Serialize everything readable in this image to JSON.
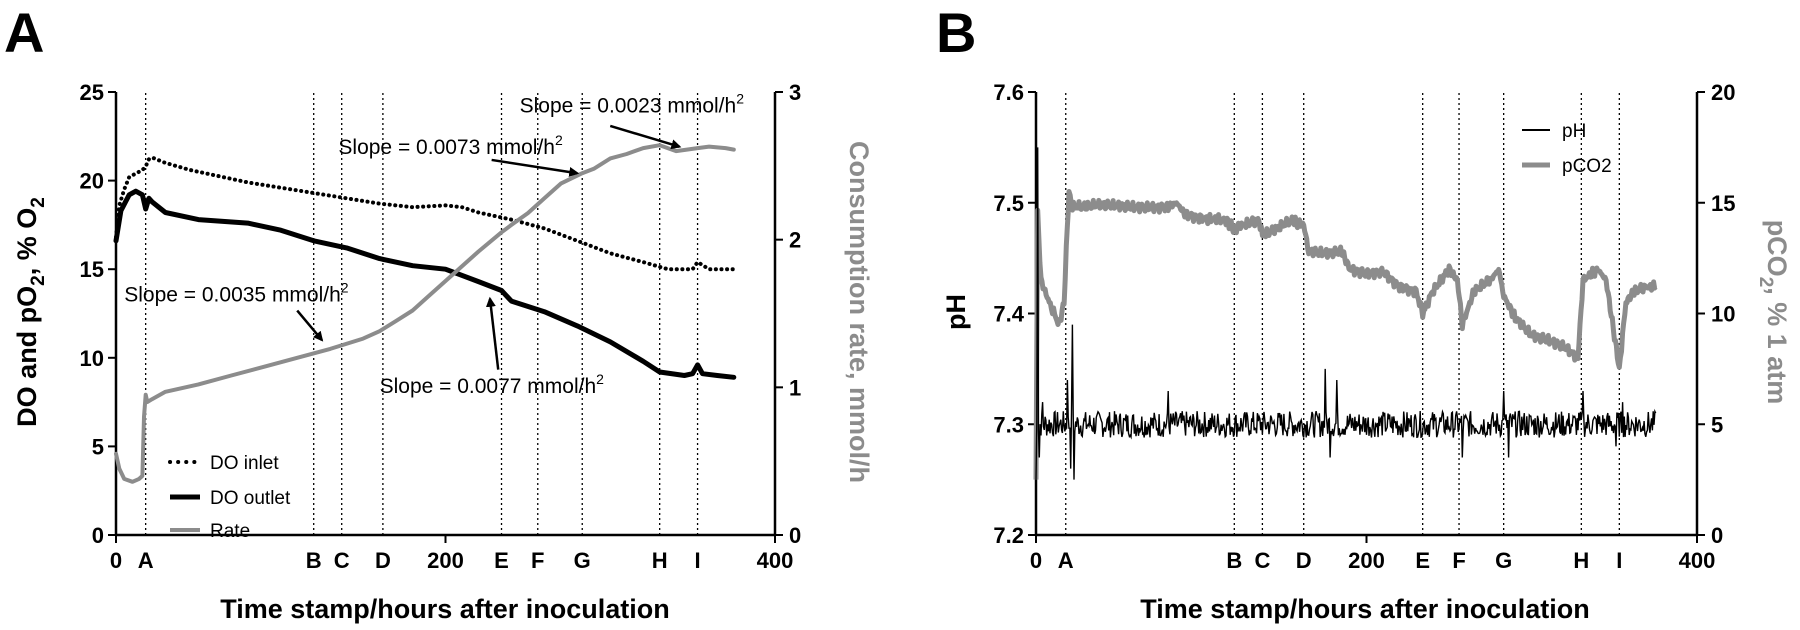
{
  "figure": {
    "panel_a_letter": "A",
    "panel_b_letter": "B"
  },
  "chart_data": [
    {
      "type": "line",
      "panel": "A",
      "xlabel": "Time stamp/hours after inoculation",
      "ylabel_left_parts": [
        "DO and pO",
        "2",
        ", % O",
        "2"
      ],
      "ylabel_right": "Consumption rate, mmol/h",
      "xlim": [
        0,
        400
      ],
      "ylim_left": [
        0,
        25
      ],
      "ylim_right": [
        0,
        3
      ],
      "xticks": [
        {
          "value": 0,
          "label": "0"
        },
        {
          "value": 200,
          "label": "200"
        },
        {
          "value": 400,
          "label": "400"
        }
      ],
      "yticks_left": [
        "0",
        "5",
        "10",
        "15",
        "20",
        "25"
      ],
      "yticks_right": [
        "0",
        "1",
        "2",
        "3"
      ],
      "markers": [
        {
          "label": "A",
          "x": 18
        },
        {
          "label": "B",
          "x": 120
        },
        {
          "label": "C",
          "x": 137
        },
        {
          "label": "D",
          "x": 162
        },
        {
          "label": "E",
          "x": 234
        },
        {
          "label": "F",
          "x": 256
        },
        {
          "label": "G",
          "x": 283
        },
        {
          "label": "H",
          "x": 330
        },
        {
          "label": "I",
          "x": 353
        }
      ],
      "series": [
        {
          "name": "DO inlet",
          "axis": "left",
          "style": "dotted",
          "color": "#000000",
          "points": [
            [
              0,
              16.8
            ],
            [
              2,
              18.6
            ],
            [
              5,
              19.5
            ],
            [
              8,
              20.2
            ],
            [
              12,
              20.4
            ],
            [
              16,
              20.6
            ],
            [
              18,
              20.8
            ],
            [
              20,
              21.2
            ],
            [
              22,
              21.3
            ],
            [
              30,
              21.0
            ],
            [
              45,
              20.6
            ],
            [
              60,
              20.3
            ],
            [
              80,
              19.9
            ],
            [
              100,
              19.6
            ],
            [
              120,
              19.3
            ],
            [
              140,
              19.0
            ],
            [
              160,
              18.7
            ],
            [
              180,
              18.5
            ],
            [
              200,
              18.6
            ],
            [
              210,
              18.5
            ],
            [
              220,
              18.2
            ],
            [
              240,
              17.8
            ],
            [
              260,
              17.3
            ],
            [
              280,
              16.6
            ],
            [
              300,
              15.9
            ],
            [
              320,
              15.4
            ],
            [
              335,
              15.0
            ],
            [
              350,
              15.0
            ],
            [
              353,
              15.4
            ],
            [
              360,
              15.0
            ],
            [
              375,
              15.0
            ]
          ]
        },
        {
          "name": "DO outlet",
          "axis": "left",
          "style": "solid",
          "color": "#000000",
          "points": [
            [
              0,
              16.6
            ],
            [
              3,
              18.3
            ],
            [
              8,
              19.2
            ],
            [
              12,
              19.4
            ],
            [
              16,
              19.2
            ],
            [
              18,
              18.4
            ],
            [
              20,
              19.0
            ],
            [
              22,
              18.8
            ],
            [
              30,
              18.2
            ],
            [
              50,
              17.8
            ],
            [
              80,
              17.6
            ],
            [
              100,
              17.2
            ],
            [
              120,
              16.6
            ],
            [
              140,
              16.2
            ],
            [
              160,
              15.6
            ],
            [
              180,
              15.2
            ],
            [
              200,
              15.0
            ],
            [
              220,
              14.3
            ],
            [
              234,
              13.8
            ],
            [
              240,
              13.2
            ],
            [
              260,
              12.6
            ],
            [
              280,
              11.8
            ],
            [
              300,
              10.9
            ],
            [
              320,
              9.8
            ],
            [
              330,
              9.2
            ],
            [
              345,
              9.0
            ],
            [
              350,
              9.1
            ],
            [
              353,
              9.6
            ],
            [
              356,
              9.1
            ],
            [
              365,
              9.0
            ],
            [
              375,
              8.9
            ]
          ]
        },
        {
          "name": "Rate",
          "axis": "right",
          "style": "solid",
          "color": "#8c8c8c",
          "points": [
            [
              0,
              0.55
            ],
            [
              2,
              0.45
            ],
            [
              5,
              0.38
            ],
            [
              10,
              0.36
            ],
            [
              14,
              0.38
            ],
            [
              16,
              0.4
            ],
            [
              17,
              0.8
            ],
            [
              18,
              0.95
            ],
            [
              19,
              0.9
            ],
            [
              22,
              0.92
            ],
            [
              30,
              0.97
            ],
            [
              50,
              1.02
            ],
            [
              70,
              1.08
            ],
            [
              90,
              1.14
            ],
            [
              110,
              1.2
            ],
            [
              130,
              1.26
            ],
            [
              150,
              1.33
            ],
            [
              160,
              1.38
            ],
            [
              170,
              1.45
            ],
            [
              180,
              1.52
            ],
            [
              190,
              1.62
            ],
            [
              200,
              1.72
            ],
            [
              210,
              1.82
            ],
            [
              220,
              1.92
            ],
            [
              234,
              2.05
            ],
            [
              240,
              2.1
            ],
            [
              250,
              2.18
            ],
            [
              260,
              2.28
            ],
            [
              270,
              2.38
            ],
            [
              283,
              2.45
            ],
            [
              290,
              2.48
            ],
            [
              300,
              2.55
            ],
            [
              310,
              2.58
            ],
            [
              320,
              2.62
            ],
            [
              330,
              2.64
            ],
            [
              340,
              2.6
            ],
            [
              353,
              2.62
            ],
            [
              360,
              2.63
            ],
            [
              370,
              2.62
            ],
            [
              375,
              2.61
            ]
          ]
        }
      ],
      "legend": [
        {
          "name": "DO inlet",
          "style": "dotted"
        },
        {
          "name": "DO outlet",
          "style": "solid"
        },
        {
          "name": "Rate",
          "style": "grey"
        }
      ],
      "annotations": [
        {
          "prefix": "Slope = 0.0023 mmol/h",
          "sup": "2",
          "tx": 245,
          "ty": 2.86,
          "ax": 300,
          "ay": 2.77,
          "bx": 342,
          "by": 2.63
        },
        {
          "prefix": "Slope = 0.0073 mmol/h",
          "sup": "2",
          "tx": 135,
          "ty": 2.58,
          "ax": 228,
          "ay": 2.54,
          "bx": 280,
          "by": 2.45
        },
        {
          "prefix": "Slope = 0.0035 mmol/h",
          "sup": "2",
          "tx": 5,
          "ty": 1.58,
          "ax": 110,
          "ay": 1.52,
          "bx": 125,
          "by": 1.32
        },
        {
          "prefix": "Slope = 0.0077 mmol/h",
          "sup": "2",
          "tx": 160,
          "ty": 0.96,
          "ax": 232,
          "ay": 1.12,
          "bx": 227,
          "by": 1.6
        }
      ]
    },
    {
      "type": "line",
      "panel": "B",
      "xlabel": "Time stamp/hours after inoculation",
      "ylabel_left": "pH",
      "ylabel_right_parts": [
        "pCO",
        "2",
        ", % 1 atm"
      ],
      "xlim": [
        0,
        400
      ],
      "ylim_left": [
        7.2,
        7.6
      ],
      "ylim_right": [
        0,
        20
      ],
      "xticks": [
        {
          "value": 0,
          "label": "0"
        },
        {
          "value": 200,
          "label": "200"
        },
        {
          "value": 400,
          "label": "400"
        }
      ],
      "yticks_left": [
        "7.2",
        "7.3",
        "7.4",
        "7.5",
        "7.6"
      ],
      "yticks_right": [
        "0",
        "5",
        "10",
        "15",
        "20"
      ],
      "markers": [
        {
          "label": "A",
          "x": 18
        },
        {
          "label": "B",
          "x": 120
        },
        {
          "label": "C",
          "x": 137
        },
        {
          "label": "D",
          "x": 162
        },
        {
          "label": "E",
          "x": 234
        },
        {
          "label": "F",
          "x": 256
        },
        {
          "label": "G",
          "x": 283
        },
        {
          "label": "H",
          "x": 330
        },
        {
          "label": "I",
          "x": 353
        }
      ],
      "series": [
        {
          "name": "pH",
          "axis": "left",
          "style": "solid",
          "color": "#000000",
          "base": 7.3,
          "noise": 0.012,
          "spikes": [
            [
              0,
              7.25
            ],
            [
              1,
              7.55
            ],
            [
              2,
              7.27
            ],
            [
              4,
              7.32
            ],
            [
              19,
              7.34
            ],
            [
              21,
              7.26
            ],
            [
              22,
              7.39
            ],
            [
              23,
              7.25
            ],
            [
              80,
              7.33
            ],
            [
              175,
              7.35
            ],
            [
              178,
              7.27
            ],
            [
              182,
              7.34
            ],
            [
              258,
              7.27
            ],
            [
              283,
              7.33
            ],
            [
              286,
              7.27
            ],
            [
              331,
              7.33
            ],
            [
              351,
              7.28
            ],
            [
              355,
              7.32
            ]
          ]
        },
        {
          "name": "pCO2",
          "axis": "right",
          "style": "solid",
          "color": "#8c8c8c",
          "points": [
            [
              0,
              2.5
            ],
            [
              1,
              14.5
            ],
            [
              3,
              11.5
            ],
            [
              8,
              10.5
            ],
            [
              14,
              9.5
            ],
            [
              17,
              10.5
            ],
            [
              19,
              14.0
            ],
            [
              20,
              15.5
            ],
            [
              22,
              14.8
            ],
            [
              40,
              14.9
            ],
            [
              60,
              14.8
            ],
            [
              80,
              14.8
            ],
            [
              85,
              15.0
            ],
            [
              90,
              14.5
            ],
            [
              100,
              14.3
            ],
            [
              115,
              14.2
            ],
            [
              120,
              13.8
            ],
            [
              125,
              14.0
            ],
            [
              135,
              14.2
            ],
            [
              137,
              13.5
            ],
            [
              145,
              13.8
            ],
            [
              155,
              14.2
            ],
            [
              162,
              14.0
            ],
            [
              165,
              12.8
            ],
            [
              175,
              12.7
            ],
            [
              185,
              12.8
            ],
            [
              190,
              12.0
            ],
            [
              200,
              11.8
            ],
            [
              210,
              11.9
            ],
            [
              220,
              11.2
            ],
            [
              230,
              11.0
            ],
            [
              234,
              10.0
            ],
            [
              240,
              11.0
            ],
            [
              250,
              12.0
            ],
            [
              255,
              11.5
            ],
            [
              258,
              9.5
            ],
            [
              265,
              11.0
            ],
            [
              275,
              11.5
            ],
            [
              280,
              12.0
            ],
            [
              283,
              10.8
            ],
            [
              290,
              9.8
            ],
            [
              300,
              9.0
            ],
            [
              310,
              8.8
            ],
            [
              320,
              8.5
            ],
            [
              328,
              8.0
            ],
            [
              331,
              11.5
            ],
            [
              340,
              12.0
            ],
            [
              345,
              11.5
            ],
            [
              350,
              9.0
            ],
            [
              353,
              7.5
            ],
            [
              357,
              10.5
            ],
            [
              362,
              11.0
            ],
            [
              368,
              11.2
            ],
            [
              375,
              11.2
            ]
          ]
        }
      ],
      "legend": [
        {
          "name": "pH",
          "style": "black"
        },
        {
          "name": "pCO2",
          "style": "grey"
        }
      ]
    }
  ]
}
